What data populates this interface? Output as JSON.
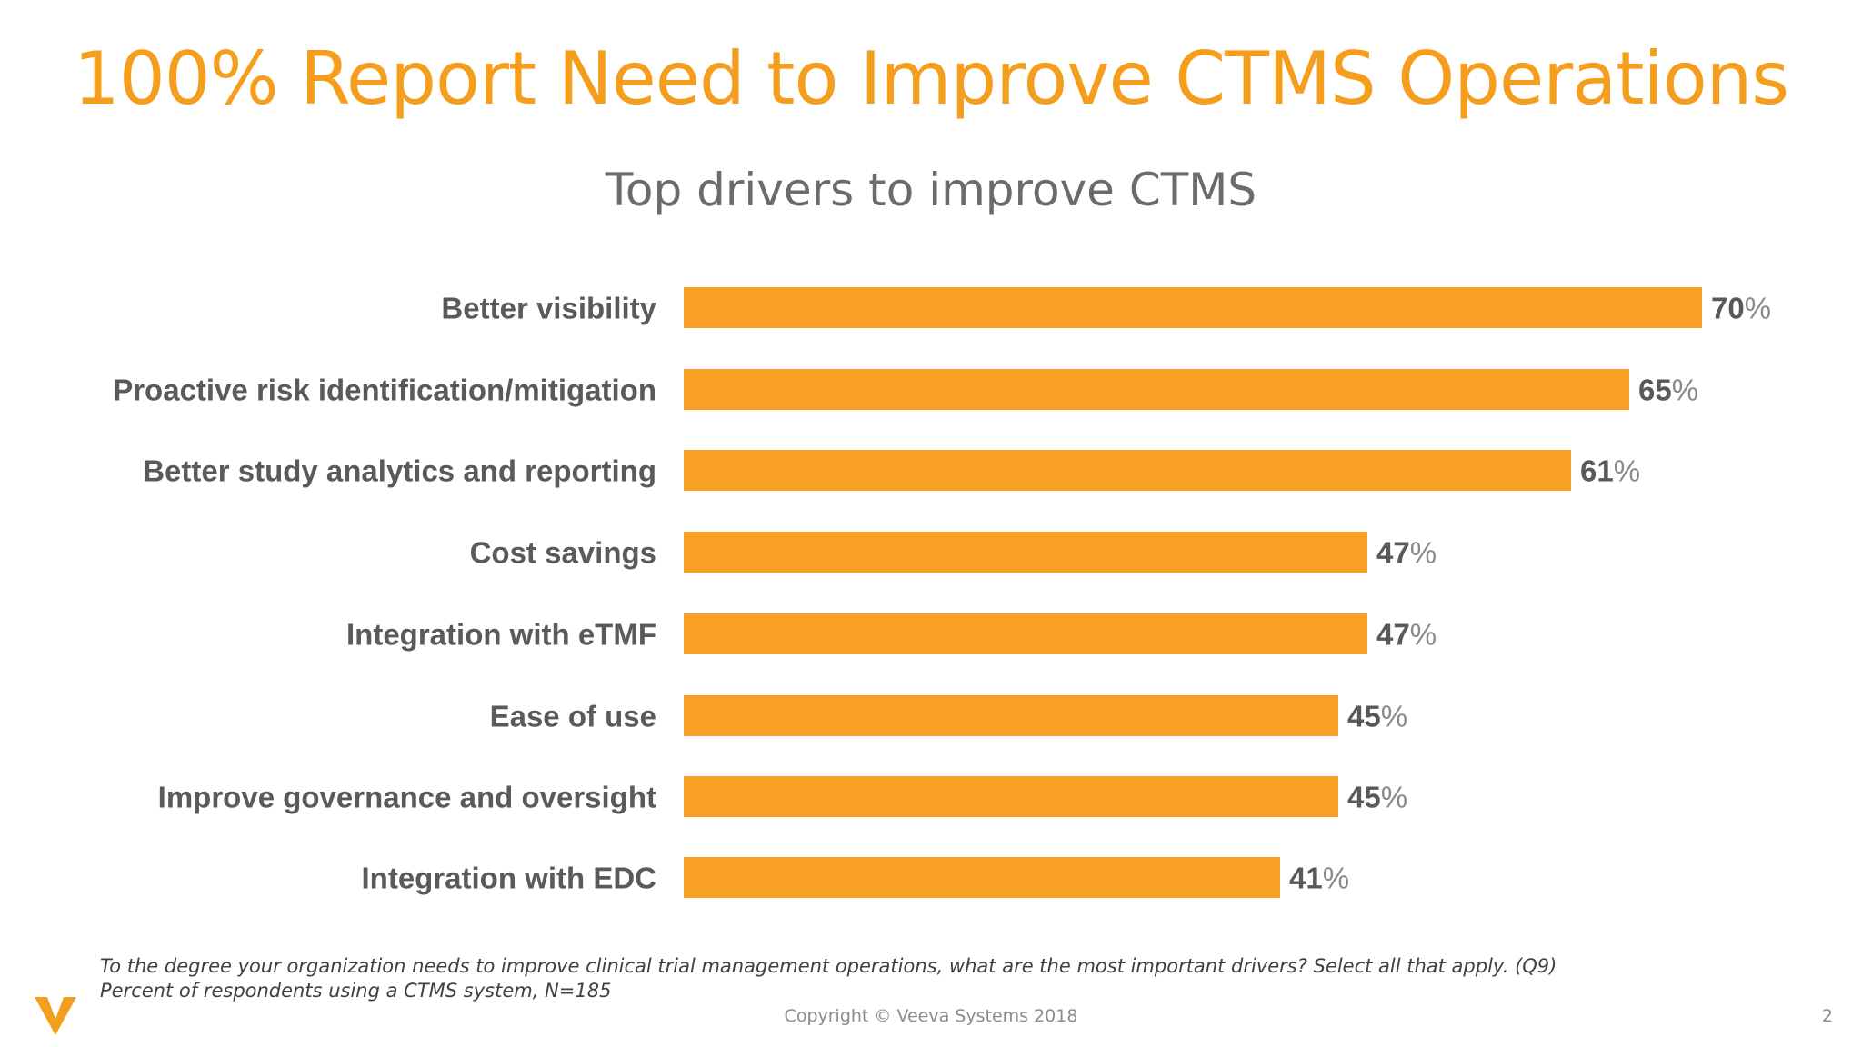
{
  "slide": {
    "title": "100% Report Need to Improve CTMS Operations",
    "footnote_line1": "To the degree your organization needs to improve clinical trial management operations, what are the most important drivers? Select all that apply. (Q9)",
    "footnote_line2": "Percent of respondents using a CTMS system, N=185",
    "copyright": "Copyright © Veeva Systems 2018",
    "page_number": "2",
    "logo_icon": "veeva-v-logo-icon"
  },
  "colors": {
    "title": "#F59E1E",
    "bar": "#F89F25"
  },
  "chart_data": {
    "type": "bar",
    "orientation": "horizontal",
    "title": "Top drivers to improve CTMS",
    "categories": [
      "Better visibility",
      "Proactive risk identification/mitigation",
      "Better study analytics and reporting",
      "Cost savings",
      "Integration with eTMF",
      "Ease of use",
      "Improve governance and oversight",
      "Integration with EDC"
    ],
    "values": [
      70,
      65,
      61,
      47,
      47,
      45,
      45,
      41
    ],
    "value_suffix": "%",
    "xlim": [
      0,
      100
    ],
    "grid": false,
    "legend": "none"
  }
}
